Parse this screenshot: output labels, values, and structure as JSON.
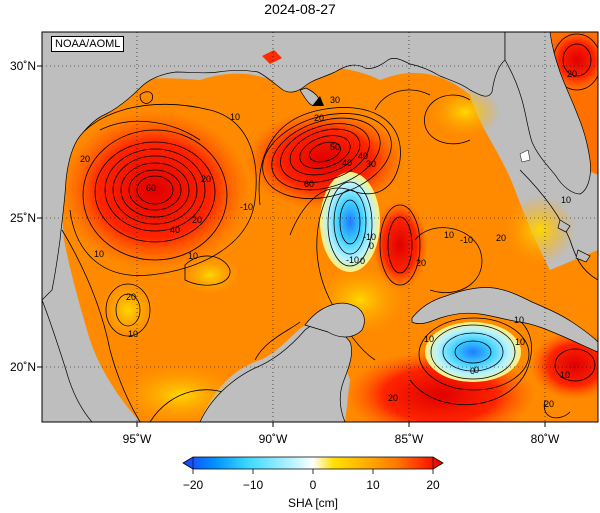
{
  "map": {
    "title": "2024-08-27",
    "credit": "NOAA/AOML",
    "lat_labels": [
      "30˚N",
      "25˚N",
      "20˚N"
    ],
    "lon_labels": [
      "95˚W",
      "90˚W",
      "85˚W",
      "80˚W"
    ],
    "contour_labels": [
      "20",
      "60",
      "10",
      "20",
      "20",
      "40",
      "20",
      "40",
      "60",
      "30",
      "40",
      "50",
      "30",
      "-10",
      "-10",
      "-10",
      "0",
      "-10",
      "0",
      "20",
      "10",
      "20",
      "10",
      "0",
      "20",
      "10",
      "10",
      "20",
      "10",
      "20",
      "10",
      "10",
      "0",
      "20",
      "10",
      "10"
    ]
  },
  "colorbar": {
    "title": "SHA [cm]",
    "tick_labels": [
      "−20",
      "−10",
      "0",
      "10",
      "20"
    ],
    "range": [
      -20,
      20
    ],
    "colors": [
      "#1e3cff",
      "#00a0ff",
      "#3cd8ff",
      "#9ff2ff",
      "#ffffff",
      "#ffe000",
      "#ffb000",
      "#ff7a00",
      "#ff3000",
      "#e00000"
    ]
  },
  "colors": {
    "land": "#bebebe",
    "ocean_base": "#ff8a00"
  }
}
